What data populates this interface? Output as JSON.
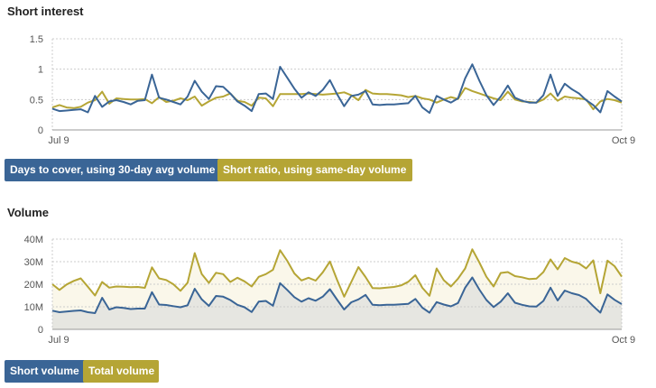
{
  "short_interest": {
    "title": "Short interest",
    "legend": {
      "days_to_cover": "Days to cover, using 30-day avg volume",
      "short_ratio": "Short ratio, using same-day volume"
    }
  },
  "volume": {
    "title": "Volume",
    "legend": {
      "short_volume": "Short volume",
      "total_volume": "Total volume"
    }
  },
  "colors": {
    "days_to_cover": "#3a6596",
    "short_ratio": "#b5a535",
    "short_volume": "#3a6596",
    "total_volume": "#b5a535",
    "short_fill": "#e6e6e1",
    "total_fill": "#faf7ea",
    "grid": "#cccccc"
  },
  "chart_data": [
    {
      "type": "line",
      "title": "Short interest",
      "x_tick_labels": [
        "Jul 9",
        "Oct 9"
      ],
      "y_ticks": [
        "1.5",
        "1",
        "0.5",
        "0"
      ],
      "ylim": [
        0,
        1.5
      ],
      "grid": true,
      "series": [
        {
          "name": "Days to cover, using 30-day avg volume",
          "values": [
            0.35,
            0.31,
            0.32,
            0.33,
            0.34,
            0.29,
            0.56,
            0.38,
            0.47,
            0.49,
            0.46,
            0.42,
            0.48,
            0.49,
            0.91,
            0.53,
            0.5,
            0.46,
            0.42,
            0.55,
            0.81,
            0.63,
            0.51,
            0.72,
            0.71,
            0.6,
            0.47,
            0.4,
            0.31,
            0.59,
            0.6,
            0.51,
            1.04,
            0.86,
            0.68,
            0.53,
            0.62,
            0.56,
            0.66,
            0.82,
            0.59,
            0.39,
            0.56,
            0.58,
            0.64,
            0.42,
            0.41,
            0.42,
            0.42,
            0.43,
            0.44,
            0.56,
            0.37,
            0.28,
            0.56,
            0.5,
            0.45,
            0.52,
            0.85,
            1.08,
            0.81,
            0.57,
            0.41,
            0.55,
            0.73,
            0.53,
            0.48,
            0.45,
            0.45,
            0.57,
            0.91,
            0.56,
            0.76,
            0.67,
            0.6,
            0.49,
            0.41,
            0.29,
            0.64,
            0.55,
            0.47
          ]
        },
        {
          "name": "Short ratio, using same-day volume",
          "values": [
            0.37,
            0.41,
            0.37,
            0.36,
            0.38,
            0.45,
            0.49,
            0.63,
            0.43,
            0.52,
            0.51,
            0.5,
            0.5,
            0.51,
            0.44,
            0.54,
            0.46,
            0.48,
            0.52,
            0.49,
            0.55,
            0.4,
            0.47,
            0.53,
            0.55,
            0.6,
            0.48,
            0.46,
            0.4,
            0.53,
            0.52,
            0.39,
            0.59,
            0.59,
            0.59,
            0.59,
            0.6,
            0.59,
            0.58,
            0.59,
            0.6,
            0.62,
            0.57,
            0.49,
            0.66,
            0.6,
            0.59,
            0.59,
            0.58,
            0.57,
            0.54,
            0.56,
            0.52,
            0.5,
            0.45,
            0.5,
            0.54,
            0.51,
            0.69,
            0.64,
            0.6,
            0.56,
            0.52,
            0.49,
            0.63,
            0.5,
            0.47,
            0.46,
            0.45,
            0.5,
            0.6,
            0.48,
            0.55,
            0.53,
            0.52,
            0.5,
            0.34,
            0.47,
            0.51,
            0.49,
            0.45
          ]
        }
      ]
    },
    {
      "type": "area",
      "title": "Volume",
      "x_tick_labels": [
        "Jul 9",
        "Oct 9"
      ],
      "y_ticks": [
        "40M",
        "30M",
        "20M",
        "10M",
        "0"
      ],
      "ylim": [
        0,
        40
      ],
      "y_unit": "M",
      "grid": true,
      "series": [
        {
          "name": "Short volume",
          "values": [
            8.3,
            7.6,
            7.9,
            8.2,
            8.4,
            7.6,
            7.2,
            14.0,
            8.8,
            9.8,
            9.5,
            9.0,
            9.2,
            9.2,
            16.5,
            11.0,
            10.8,
            10.3,
            9.8,
            10.7,
            18.0,
            13.3,
            10.4,
            14.8,
            14.5,
            13.0,
            10.9,
            9.8,
            7.7,
            12.3,
            12.6,
            10.5,
            20.5,
            17.5,
            14.3,
            12.3,
            13.8,
            12.7,
            14.5,
            17.8,
            13.2,
            8.8,
            12.0,
            13.3,
            15.3,
            10.9,
            10.7,
            10.9,
            10.9,
            11.1,
            11.3,
            13.5,
            9.6,
            7.4,
            12.1,
            11.0,
            10.2,
            11.7,
            18.5,
            23.0,
            17.6,
            13.0,
            9.9,
            12.3,
            16.0,
            11.8,
            10.9,
            10.2,
            10.1,
            12.6,
            18.5,
            12.8,
            17.2,
            16.0,
            15.2,
            13.5,
            10.3,
            7.4,
            15.5,
            13.1,
            11.2
          ]
        },
        {
          "name": "Total volume",
          "values": [
            20.0,
            17.5,
            19.9,
            21.5,
            22.6,
            18.9,
            15.0,
            21.0,
            18.5,
            19.0,
            18.9,
            18.7,
            18.8,
            18.4,
            27.5,
            22.6,
            21.9,
            20.0,
            17.1,
            20.7,
            33.8,
            24.5,
            20.6,
            25.1,
            24.5,
            21.0,
            22.9,
            21.3,
            19.0,
            23.3,
            24.5,
            26.4,
            35.1,
            30.4,
            24.8,
            21.7,
            22.9,
            21.6,
            25.3,
            30.1,
            22.0,
            14.5,
            21.0,
            27.6,
            23.2,
            18.3,
            18.2,
            18.5,
            18.8,
            19.5,
            21.1,
            24.0,
            18.4,
            14.9,
            27.0,
            21.8,
            19.0,
            22.5,
            27.0,
            35.5,
            29.6,
            23.3,
            19.0,
            25.0,
            25.4,
            23.6,
            23.1,
            22.3,
            22.5,
            25.4,
            31.0,
            26.6,
            31.6,
            30.0,
            29.2,
            27.0,
            30.6,
            16.0,
            30.5,
            28.0,
            23.4
          ]
        }
      ]
    }
  ]
}
